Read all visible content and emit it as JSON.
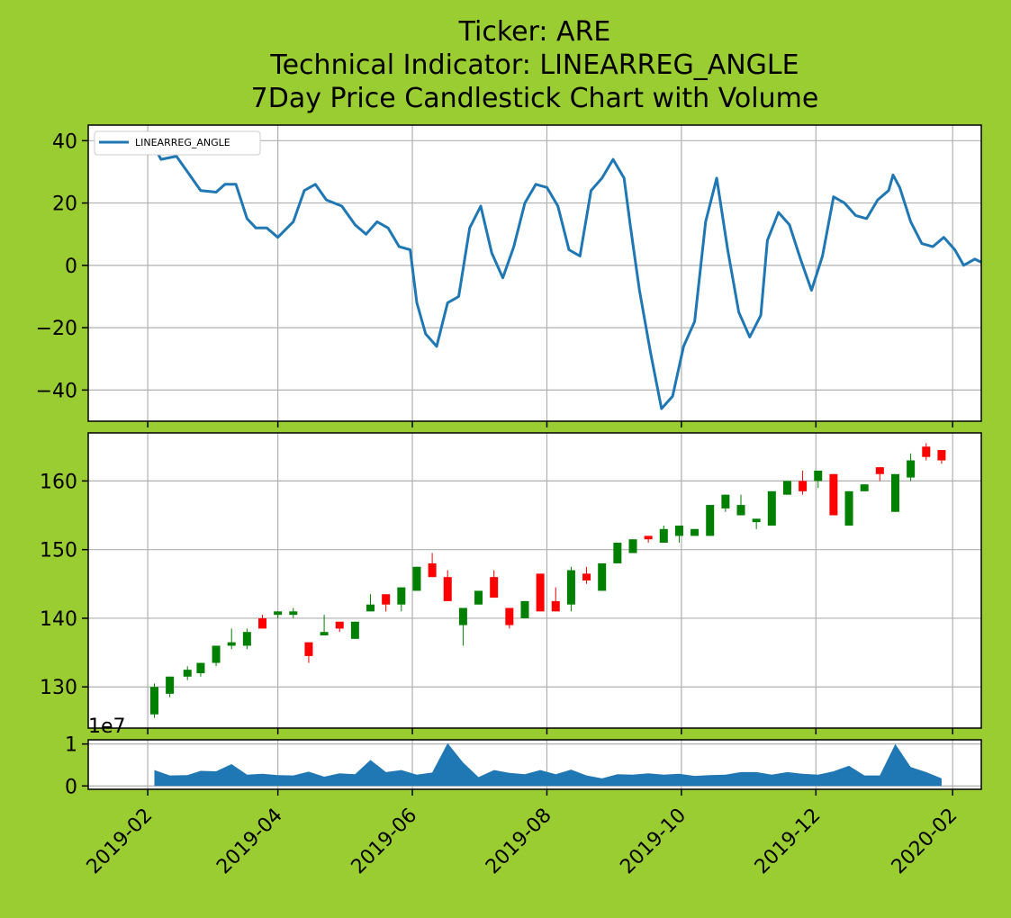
{
  "chart_data": {
    "type": "candlestick",
    "title": [
      "Ticker: ARE",
      "Technical Indicator: LINEARREG_ANGLE",
      "7Day Price Candlestick Chart with Volume"
    ],
    "x_tick_labels": [
      "2019-02",
      "2019-04",
      "2019-06",
      "2019-08",
      "2019-10",
      "2019-12",
      "2020-02"
    ],
    "x_ticks": [
      "2019-02-01",
      "2019-04-01",
      "2019-06-01",
      "2019-08-01",
      "2019-10-01",
      "2019-12-01",
      "2020-02-01"
    ],
    "x_range": [
      "2019-01-05",
      "2020-02-14"
    ],
    "grid": true,
    "indicator": {
      "legend_label": "LINEARREG_ANGLE",
      "legend_position": "upper-left",
      "color": "#1f77b4",
      "ylim": [
        -50,
        45
      ],
      "y_ticks": [
        -40,
        -20,
        0,
        20,
        40
      ],
      "y_tick_labels": [
        "−40",
        "−20",
        "0",
        "20",
        "40"
      ],
      "points": [
        [
          "2019-02-04",
          38
        ],
        [
          "2019-02-07",
          34
        ],
        [
          "2019-02-14",
          35
        ],
        [
          "2019-02-19",
          30
        ],
        [
          "2019-02-25",
          24
        ],
        [
          "2019-03-04",
          23.5
        ],
        [
          "2019-03-08",
          26
        ],
        [
          "2019-03-13",
          26
        ],
        [
          "2019-03-18",
          15
        ],
        [
          "2019-03-22",
          12
        ],
        [
          "2019-03-27",
          12
        ],
        [
          "2019-04-01",
          9
        ],
        [
          "2019-04-08",
          14
        ],
        [
          "2019-04-13",
          24
        ],
        [
          "2019-04-18",
          26
        ],
        [
          "2019-04-23",
          21
        ],
        [
          "2019-04-30",
          19
        ],
        [
          "2019-05-06",
          13
        ],
        [
          "2019-05-11",
          10
        ],
        [
          "2019-05-16",
          14
        ],
        [
          "2019-05-21",
          12
        ],
        [
          "2019-05-26",
          6
        ],
        [
          "2019-05-31",
          5
        ],
        [
          "2019-06-03",
          -12
        ],
        [
          "2019-06-07",
          -22
        ],
        [
          "2019-06-12",
          -26
        ],
        [
          "2019-06-17",
          -12
        ],
        [
          "2019-06-22",
          -10
        ],
        [
          "2019-06-27",
          12
        ],
        [
          "2019-07-02",
          19
        ],
        [
          "2019-07-07",
          4
        ],
        [
          "2019-07-12",
          -4
        ],
        [
          "2019-07-17",
          6
        ],
        [
          "2019-07-22",
          20
        ],
        [
          "2019-07-27",
          26
        ],
        [
          "2019-08-01",
          25
        ],
        [
          "2019-08-06",
          19
        ],
        [
          "2019-08-11",
          5
        ],
        [
          "2019-08-16",
          3
        ],
        [
          "2019-08-21",
          24
        ],
        [
          "2019-08-26",
          28
        ],
        [
          "2019-08-31",
          34
        ],
        [
          "2019-09-05",
          28
        ],
        [
          "2019-09-08",
          12
        ],
        [
          "2019-09-12",
          -8
        ],
        [
          "2019-09-17",
          -28
        ],
        [
          "2019-09-22",
          -46
        ],
        [
          "2019-09-27",
          -42
        ],
        [
          "2019-10-02",
          -26
        ],
        [
          "2019-10-07",
          -18
        ],
        [
          "2019-10-12",
          14
        ],
        [
          "2019-10-17",
          28
        ],
        [
          "2019-10-22",
          5
        ],
        [
          "2019-10-27",
          -15
        ],
        [
          "2019-11-01",
          -23
        ],
        [
          "2019-11-06",
          -16
        ],
        [
          "2019-11-09",
          8
        ],
        [
          "2019-11-14",
          17
        ],
        [
          "2019-11-19",
          13
        ],
        [
          "2019-11-24",
          2
        ],
        [
          "2019-11-29",
          -8
        ],
        [
          "2019-12-04",
          3
        ],
        [
          "2019-12-09",
          22
        ],
        [
          "2019-12-14",
          20
        ],
        [
          "2019-12-19",
          16
        ],
        [
          "2019-12-24",
          15
        ],
        [
          "2019-12-29",
          21
        ],
        [
          "2020-01-03",
          24
        ],
        [
          "2020-01-05",
          29
        ],
        [
          "2020-01-08",
          25
        ],
        [
          "2020-01-13",
          14
        ],
        [
          "2020-01-18",
          7
        ],
        [
          "2020-01-23",
          6
        ],
        [
          "2020-01-28",
          9
        ],
        [
          "2020-02-02",
          5
        ],
        [
          "2020-02-06",
          0
        ],
        [
          "2020-02-11",
          2
        ],
        [
          "2020-02-14",
          1
        ]
      ]
    },
    "price": {
      "ylim": [
        124,
        167
      ],
      "y_ticks": [
        130,
        140,
        150,
        160
      ],
      "y_tick_labels": [
        "130",
        "140",
        "150",
        "160"
      ],
      "up_color": "#008000",
      "down_color": "#ff0000",
      "candles": [
        [
          "2019-02-04",
          126,
          130,
          125.5,
          130.5
        ],
        [
          "2019-02-11",
          129,
          131.5,
          128.5,
          131.5
        ],
        [
          "2019-02-19",
          131.5,
          132.5,
          131,
          133
        ],
        [
          "2019-02-25",
          132,
          133.5,
          131.5,
          133.5
        ],
        [
          "2019-03-04",
          133.5,
          136,
          133,
          136
        ],
        [
          "2019-03-11",
          136,
          136.5,
          135.5,
          138.5
        ],
        [
          "2019-03-18",
          136,
          138,
          135.5,
          138.5
        ],
        [
          "2019-03-25",
          140,
          138.5,
          138.5,
          140.5
        ],
        [
          "2019-04-01",
          140.5,
          141,
          140,
          141
        ],
        [
          "2019-04-08",
          140.5,
          141,
          140,
          141.5
        ],
        [
          "2019-04-15",
          136.5,
          134.5,
          133.5,
          136.5
        ],
        [
          "2019-04-22",
          137.5,
          138,
          137.5,
          140.5
        ],
        [
          "2019-04-29",
          139.5,
          138.5,
          138,
          139.5
        ],
        [
          "2019-05-06",
          137,
          139.5,
          137,
          139.5
        ],
        [
          "2019-05-13",
          141,
          142,
          141,
          143.5
        ],
        [
          "2019-05-20",
          143.5,
          142,
          141,
          143.5
        ],
        [
          "2019-05-27",
          142,
          144.5,
          141,
          144.5
        ],
        [
          "2019-06-03",
          144,
          147.5,
          144,
          147.5
        ],
        [
          "2019-06-10",
          148,
          146,
          146,
          149.5
        ],
        [
          "2019-06-17",
          146,
          142.5,
          142.5,
          147
        ],
        [
          "2019-06-24",
          139,
          141.5,
          136,
          141.5
        ],
        [
          "2019-07-01",
          142,
          144,
          142,
          144
        ],
        [
          "2019-07-08",
          146,
          143,
          143,
          147
        ],
        [
          "2019-07-15",
          141.5,
          139,
          138.5,
          141.5
        ],
        [
          "2019-07-22",
          140,
          142.5,
          140,
          142.5
        ],
        [
          "2019-07-29",
          146.5,
          141,
          141,
          146.5
        ],
        [
          "2019-08-05",
          142.5,
          141,
          141,
          144.5
        ],
        [
          "2019-08-12",
          142,
          147,
          141,
          147.5
        ],
        [
          "2019-08-19",
          146.5,
          145.5,
          145,
          147.5
        ],
        [
          "2019-08-26",
          144,
          148,
          144,
          148
        ],
        [
          "2019-09-02",
          148,
          151,
          148,
          151
        ],
        [
          "2019-09-09",
          149.5,
          151.5,
          149.5,
          151.5
        ],
        [
          "2019-09-16",
          152,
          151.5,
          151,
          152
        ],
        [
          "2019-09-23",
          151,
          153,
          151,
          153.5
        ],
        [
          "2019-09-30",
          152,
          153.5,
          151,
          153.5
        ],
        [
          "2019-10-07",
          152,
          153,
          152,
          153
        ],
        [
          "2019-10-14",
          152,
          156.5,
          152,
          156.5
        ],
        [
          "2019-10-21",
          156,
          158,
          155.5,
          158
        ],
        [
          "2019-10-28",
          155,
          156.5,
          155,
          158
        ],
        [
          "2019-11-04",
          154,
          154.5,
          153,
          154.5
        ],
        [
          "2019-11-11",
          153.5,
          158.5,
          153.5,
          158.5
        ],
        [
          "2019-11-18",
          158,
          160,
          158,
          160
        ],
        [
          "2019-11-25",
          160,
          158.5,
          158,
          161.5
        ],
        [
          "2019-12-02",
          160,
          161.5,
          159,
          161.5
        ],
        [
          "2019-12-09",
          161,
          155,
          155,
          161
        ],
        [
          "2019-12-16",
          153.5,
          158.5,
          153.5,
          158.5
        ],
        [
          "2019-12-23",
          158.5,
          159.5,
          158.5,
          159.5
        ],
        [
          "2019-12-30",
          162,
          161,
          160,
          162
        ],
        [
          "2020-01-06",
          155.5,
          161,
          155.5,
          161
        ],
        [
          "2020-01-13",
          160.5,
          163,
          160,
          164
        ],
        [
          "2020-01-20",
          165,
          163.5,
          163,
          165.5
        ],
        [
          "2020-01-27",
          164.5,
          163,
          162.5,
          164.5
        ]
      ]
    },
    "volume": {
      "multiplier_label": "1e7",
      "ylim": [
        -0.08,
        1.1
      ],
      "y_ticks": [
        0,
        1
      ],
      "y_tick_labels": [
        "0",
        "1"
      ],
      "color": "#1f77b4",
      "points": [
        [
          "2019-02-04",
          0.38
        ],
        [
          "2019-02-11",
          0.25
        ],
        [
          "2019-02-19",
          0.26
        ],
        [
          "2019-02-25",
          0.36
        ],
        [
          "2019-03-04",
          0.35
        ],
        [
          "2019-03-11",
          0.52
        ],
        [
          "2019-03-18",
          0.27
        ],
        [
          "2019-03-25",
          0.29
        ],
        [
          "2019-04-01",
          0.26
        ],
        [
          "2019-04-08",
          0.25
        ],
        [
          "2019-04-15",
          0.34
        ],
        [
          "2019-04-22",
          0.22
        ],
        [
          "2019-04-29",
          0.3
        ],
        [
          "2019-05-06",
          0.28
        ],
        [
          "2019-05-13",
          0.62
        ],
        [
          "2019-05-20",
          0.33
        ],
        [
          "2019-05-27",
          0.38
        ],
        [
          "2019-06-03",
          0.27
        ],
        [
          "2019-06-10",
          0.32
        ],
        [
          "2019-06-17",
          1.02
        ],
        [
          "2019-06-24",
          0.56
        ],
        [
          "2019-07-01",
          0.21
        ],
        [
          "2019-07-08",
          0.38
        ],
        [
          "2019-07-15",
          0.31
        ],
        [
          "2019-07-22",
          0.28
        ],
        [
          "2019-07-29",
          0.38
        ],
        [
          "2019-08-05",
          0.28
        ],
        [
          "2019-08-12",
          0.39
        ],
        [
          "2019-08-19",
          0.25
        ],
        [
          "2019-08-26",
          0.18
        ],
        [
          "2019-09-02",
          0.28
        ],
        [
          "2019-09-09",
          0.27
        ],
        [
          "2019-09-16",
          0.3
        ],
        [
          "2019-09-23",
          0.27
        ],
        [
          "2019-09-30",
          0.29
        ],
        [
          "2019-10-07",
          0.24
        ],
        [
          "2019-10-14",
          0.26
        ],
        [
          "2019-10-21",
          0.27
        ],
        [
          "2019-10-28",
          0.33
        ],
        [
          "2019-11-04",
          0.33
        ],
        [
          "2019-11-11",
          0.27
        ],
        [
          "2019-11-18",
          0.33
        ],
        [
          "2019-11-25",
          0.29
        ],
        [
          "2019-12-02",
          0.27
        ],
        [
          "2019-12-09",
          0.35
        ],
        [
          "2019-12-16",
          0.48
        ],
        [
          "2019-12-23",
          0.25
        ],
        [
          "2019-12-30",
          0.25
        ],
        [
          "2020-01-06",
          1.0
        ],
        [
          "2020-01-13",
          0.45
        ],
        [
          "2020-01-20",
          0.33
        ],
        [
          "2020-01-27",
          0.18
        ]
      ]
    }
  }
}
